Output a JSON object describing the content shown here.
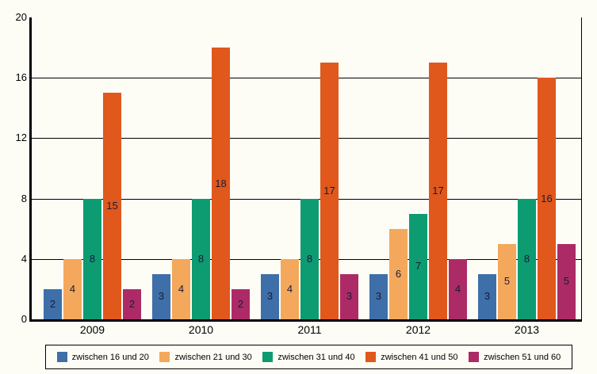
{
  "chart_data": {
    "type": "bar",
    "title": "",
    "xlabel": "",
    "ylabel": "",
    "categories": [
      "2009",
      "2010",
      "2011",
      "2012",
      "2013"
    ],
    "series": [
      {
        "name": "zwischen 16 und 20",
        "color": "#3E6FA8",
        "values": [
          2,
          3,
          3,
          3,
          3
        ]
      },
      {
        "name": "zwischen 21 und 30",
        "color": "#F4A85C",
        "values": [
          4,
          4,
          4,
          6,
          5
        ]
      },
      {
        "name": "zwischen 31 und 40",
        "color": "#0D9B72",
        "values": [
          8,
          8,
          8,
          7,
          8
        ]
      },
      {
        "name": "zwischen 41 und 50",
        "color": "#E0581C",
        "values": [
          15,
          18,
          17,
          17,
          16
        ]
      },
      {
        "name": "zwischen 51 und 60",
        "color": "#AC2B66",
        "values": [
          2,
          2,
          3,
          4,
          5
        ]
      }
    ],
    "ylim": [
      0,
      20
    ],
    "yticks": [
      0,
      4,
      8,
      12,
      16,
      20
    ],
    "gridlines": [
      4,
      8,
      12,
      16
    ],
    "grid": true,
    "value_labels": true,
    "legend_position": "bottom"
  },
  "colors": {
    "background": "#FDFDF6",
    "axis": "#000000",
    "value_label_text": "#1A1A38"
  }
}
